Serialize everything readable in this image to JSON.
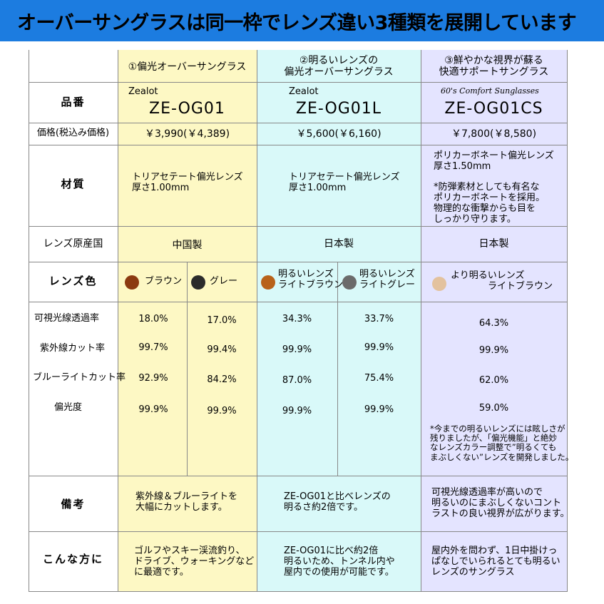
{
  "banner": {
    "text": "オーバーサングラスは同一枠でレンズ違い3種類を展開しています"
  },
  "headers": [
    "①偏光オーバーサングラス",
    "②明るいレンズの\n偏光オーバーサングラス",
    "③鮮やかな視界が蘇る\n快適サポートサングラス"
  ],
  "row_labels": {
    "model": "品番",
    "price": "価格(税込み価格)",
    "material": "材質",
    "origin": "レンズ原産国",
    "color": "レンズ色",
    "note": "備考",
    "target": "こんな方に"
  },
  "products": [
    {
      "brand": "Zealot",
      "model": "ZE-OG01",
      "price": "￥3,990(￥4,389)",
      "material": "トリアセテート偏光レンズ\n厚さ1.00mm",
      "origin": "中国製",
      "note": "紫外線＆ブルーライトを\n大幅にカットします。",
      "target": "ゴルフやスキー渓流釣り、\nドライブ、ウォーキングなど\nに最適です。"
    },
    {
      "brand": "Zealot",
      "model": "ZE-OG01L",
      "price": "￥5,600(￥6,160)",
      "material": "トリアセテート偏光レンズ\n厚さ1.00mm",
      "origin": "日本製",
      "note": "ZE-OG01と比べレンズの\n明るさ約2倍です。",
      "target": "ZE-OG01に比べ約2倍\n明るいため、トンネル内や\n屋内での使用が可能です。"
    },
    {
      "brand": "60's Comfort Sunglasses",
      "model": "ZE-OG01CS",
      "price": "￥7,800(￥8,580)",
      "material": "ポリカーボネート偏光レンズ\n厚さ1.50mm",
      "material_note": "*防弾素材としても有名な\nポリカーボネートを採用。\n物理的な衝撃からも目を\nしっかり守ります。",
      "origin": "日本製",
      "note": "可視光線透過率が高いので\n明るいのにまぶしくないコント\nラストの良い視界が広がります。",
      "target": "屋内外を問わず、1日中掛けっ\nぱなしでいられるとても明るい\nレンズのサングラス"
    }
  ],
  "lens_colors": [
    {
      "name": "ブラウン",
      "color": "#8b3a10"
    },
    {
      "name": "グレー",
      "color": "#2b2b2b"
    },
    {
      "name": "明るいレンズ\nライトブラウン",
      "color": "#b8621a"
    },
    {
      "name": "明るいレンズ\nライトグレー",
      "color": "#6b6b6b"
    },
    {
      "name": "より明るいレンズ\n　　　　ライトブラウン",
      "color": "#e3c29e"
    }
  ],
  "spec_labels": [
    "可視光線透過率",
    "紫外線カット率",
    "ブルーライトカット率",
    "偏光度"
  ],
  "specs": [
    [
      "18.0%",
      "17.0%",
      "34.3%",
      "33.7%",
      "64.3%"
    ],
    [
      "99.7%",
      "99.4%",
      "99.9%",
      "99.9%",
      "99.9%"
    ],
    [
      "92.9%",
      "84.2%",
      "87.0%",
      "75.4%",
      "62.0%"
    ],
    [
      "99.9%",
      "99.9%",
      "99.9%",
      "99.9%",
      "59.0%"
    ]
  ],
  "spec_note": "*今までの明るいレンズには眩しさが\n残りましたが、「偏光機能」と絶妙\nなレンズカラー調整で”明るくても\nまぶしくない”レンズを開発しました。"
}
